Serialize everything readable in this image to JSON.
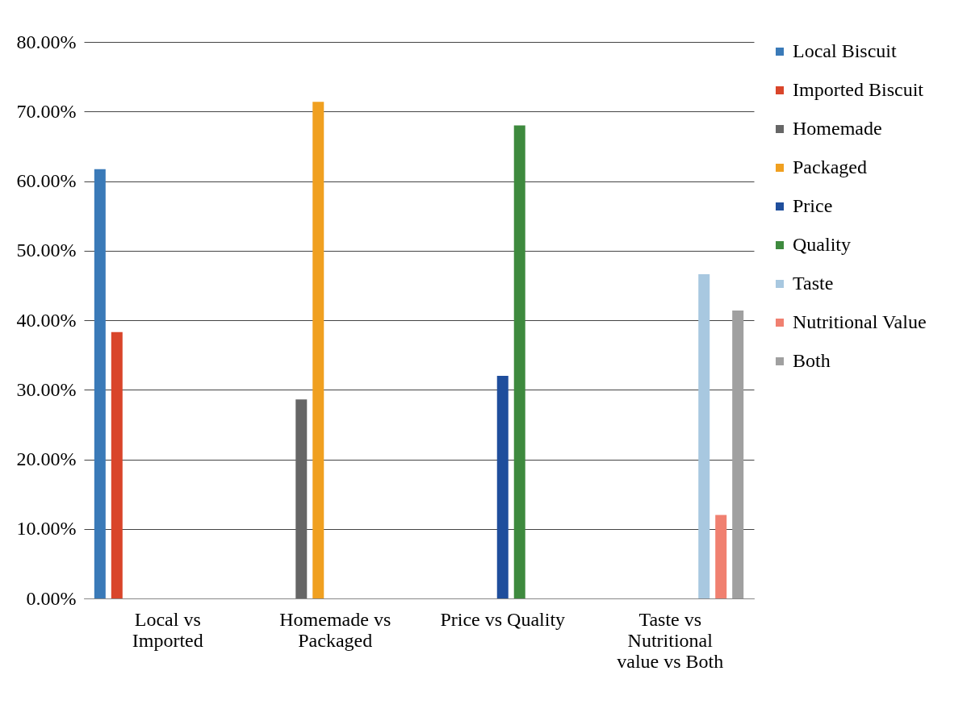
{
  "chart_data": {
    "type": "bar",
    "categories": [
      "Local vs Imported",
      "Homemade vs Packaged",
      "Price vs Quality",
      "Taste vs Nutritional value vs Both"
    ],
    "series": [
      {
        "name": "Local Biscuit",
        "color": "#3a7ab8",
        "values": [
          61.7,
          null,
          null,
          null
        ]
      },
      {
        "name": "Imported Biscuit",
        "color": "#d9452a",
        "values": [
          38.3,
          null,
          null,
          null
        ]
      },
      {
        "name": "Homemade",
        "color": "#666666",
        "values": [
          null,
          28.6,
          null,
          null
        ]
      },
      {
        "name": "Packaged",
        "color": "#f0a020",
        "values": [
          null,
          71.4,
          null,
          null
        ]
      },
      {
        "name": "Price",
        "color": "#1f4e9c",
        "values": [
          null,
          null,
          32,
          null
        ]
      },
      {
        "name": "Quality",
        "color": "#3e8a3e",
        "values": [
          null,
          null,
          68,
          null
        ]
      },
      {
        "name": "Taste",
        "color": "#a8c8e0",
        "values": [
          null,
          null,
          null,
          46.6
        ]
      },
      {
        "name": "Nutritional Value",
        "color": "#f08070",
        "values": [
          null,
          null,
          null,
          12
        ]
      },
      {
        "name": "Both",
        "color": "#a0a0a0",
        "values": [
          null,
          null,
          null,
          41.4
        ]
      }
    ],
    "ylim": [
      0,
      80
    ],
    "yticks": [
      {
        "value": 0,
        "label": "0.00%"
      },
      {
        "value": 10,
        "label": "10.00%"
      },
      {
        "value": 20,
        "label": "20.00%"
      },
      {
        "value": 30,
        "label": "30.00%"
      },
      {
        "value": 40,
        "label": "40.00%"
      },
      {
        "value": 50,
        "label": "50.00%"
      },
      {
        "value": 60,
        "label": "60.00%"
      },
      {
        "value": 70,
        "label": "70.00%"
      },
      {
        "value": 80,
        "label": "80.00%"
      }
    ],
    "grid": "y",
    "legend": "right"
  }
}
